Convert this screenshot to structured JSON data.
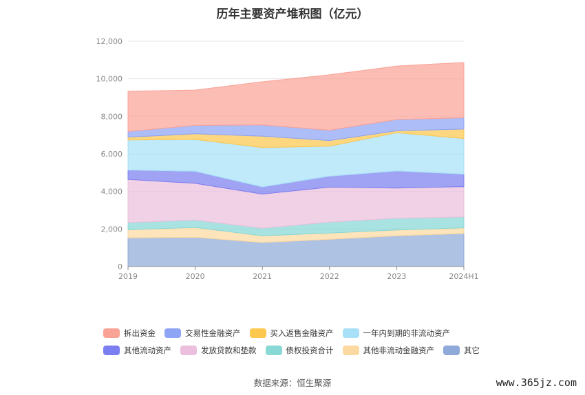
{
  "title": "历年主要资产堆积图（亿元）",
  "source": "数据来源：恒生聚源",
  "watermark": "www.365jz.com",
  "chart_data": {
    "type": "area",
    "stacked": true,
    "categories": [
      "2019",
      "2020",
      "2021",
      "2022",
      "2023",
      "2024H1"
    ],
    "ylim": [
      0,
      12000
    ],
    "yticks": [
      "0",
      "2,000",
      "4,000",
      "6,000",
      "8,000",
      "10,000",
      "12,000"
    ],
    "ytick_values": [
      0,
      2000,
      4000,
      6000,
      8000,
      10000,
      12000
    ],
    "grid": true,
    "legend_position": "bottom",
    "series": [
      {
        "name": "其它",
        "color": "#8faad8",
        "values": [
          1530,
          1560,
          1280,
          1450,
          1640,
          1760
        ]
      },
      {
        "name": "其他非流动金融资产",
        "color": "#fcd9a0",
        "values": [
          430,
          520,
          360,
          330,
          310,
          300
        ]
      },
      {
        "name": "债权投资合计",
        "color": "#88d8d6",
        "values": [
          380,
          400,
          400,
          590,
          620,
          580
        ]
      },
      {
        "name": "发放贷款和垫款",
        "color": "#ebbfdd",
        "values": [
          2300,
          1950,
          1820,
          1860,
          1610,
          1620
        ]
      },
      {
        "name": "其他流动资产",
        "color": "#7b7ef0",
        "values": [
          500,
          640,
          380,
          580,
          910,
          660
        ]
      },
      {
        "name": "一年内到期的非流动资产",
        "color": "#a8e0f7",
        "values": [
          1600,
          1700,
          2100,
          1600,
          2040,
          1900
        ]
      },
      {
        "name": "买入返售金融资产",
        "color": "#fcc84e",
        "values": [
          150,
          300,
          600,
          300,
          100,
          500
        ]
      },
      {
        "name": "交易性金融资产",
        "color": "#8ea4f5",
        "values": [
          300,
          450,
          600,
          550,
          600,
          600
        ]
      },
      {
        "name": "拆出资金",
        "color": "#f9a397",
        "values": [
          2150,
          1880,
          2300,
          2950,
          2850,
          2950
        ]
      }
    ],
    "legend_rows": [
      [
        "拆出资金",
        "交易性金融资产",
        "买入返售金融资产",
        "一年内到期的非流动资产"
      ],
      [
        "其他流动资产",
        "发放贷款和垫款",
        "债权投资合计",
        "其他非流动金融资产",
        "其它"
      ]
    ]
  }
}
